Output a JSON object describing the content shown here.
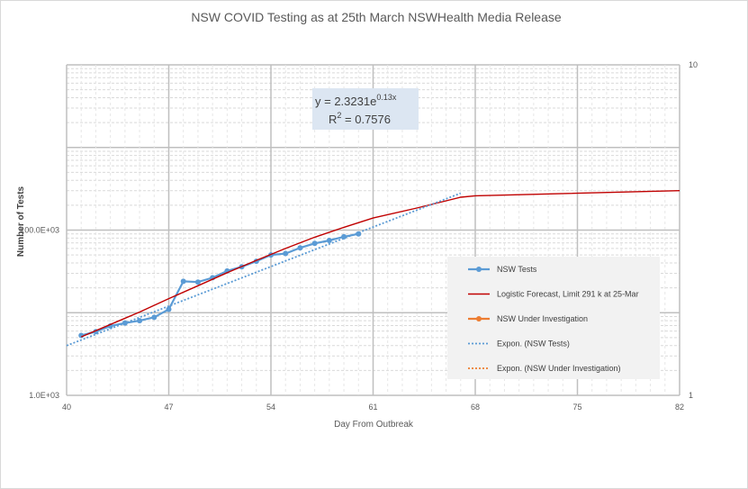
{
  "chart_data": {
    "type": "line",
    "title": "NSW COVID Testing as at 25th March NSWHealth Media Release",
    "xlabel": "Day From Outbreak",
    "ylabel": "Number of Tests",
    "x_ticks": [
      40,
      47,
      54,
      61,
      68,
      75,
      82
    ],
    "x_tick_labels": [
      "40",
      "47",
      "54",
      "61",
      "68",
      "75",
      "82"
    ],
    "xlim": [
      40,
      82
    ],
    "y_scale": "log",
    "y_tick_labels": [
      "1.0E+03",
      "100.0E+03"
    ],
    "y_ticks": [
      1000,
      100000
    ],
    "ylim": [
      1000,
      10000000
    ],
    "y2_scale": "log",
    "y2_tick_labels": [
      "1",
      "10"
    ],
    "y2_ticks": [
      1,
      10
    ],
    "grid": true,
    "legend_position": "right",
    "series": [
      {
        "name": "NSW Tests",
        "color": "#5b9bd5",
        "marker": "circle",
        "x": [
          41,
          42,
          43,
          44,
          45,
          46,
          47,
          48,
          49,
          50,
          51,
          52,
          53,
          54,
          55,
          56,
          57,
          58,
          59,
          60
        ],
        "y": [
          5300,
          5900,
          6900,
          7500,
          8000,
          8800,
          11000,
          24000,
          23500,
          26500,
          32000,
          36000,
          42000,
          50000,
          52000,
          61000,
          69000,
          75000,
          83000,
          90000
        ]
      },
      {
        "name": "Logistic Forecast, Limit 291 k at 25-Mar",
        "color": "#c00000",
        "x": [
          41,
          43,
          45,
          47,
          49,
          51,
          53,
          55,
          57,
          59,
          61,
          64,
          67,
          68,
          82
        ],
        "y": [
          5100,
          7200,
          10200,
          14800,
          21200,
          30500,
          43000,
          60000,
          82000,
          108000,
          140000,
          185000,
          250000,
          260000,
          300000
        ]
      },
      {
        "name": "NSW Under Investigation",
        "color": "#ed7d31",
        "marker": "circle",
        "x": [],
        "y": []
      },
      {
        "name": "Expon. (NSW Tests)",
        "color": "#5b9bd5",
        "style": "dotted",
        "x": [
          40,
          67
        ],
        "y": [
          4000,
          280000
        ]
      },
      {
        "name": "Expon. (NSW Under Investigation)",
        "color": "#ed7d31",
        "style": "dotted",
        "x": [],
        "y": []
      }
    ],
    "annotations": [
      {
        "text": "y = 2.3231e",
        "superscript": "0.13x"
      },
      {
        "text": "R",
        "superscript": "2",
        "suffix": " = 0.7576"
      }
    ]
  }
}
